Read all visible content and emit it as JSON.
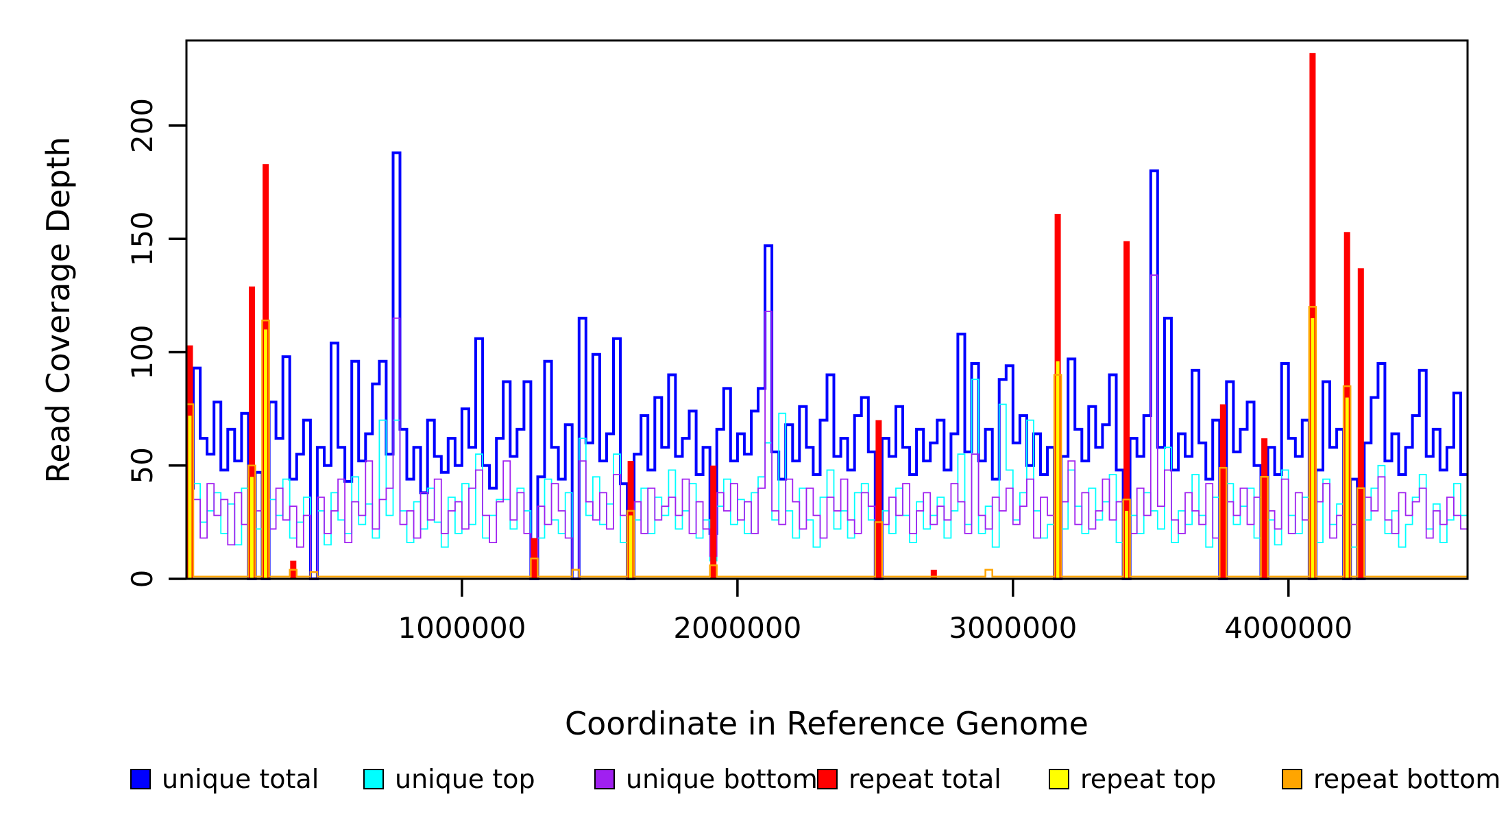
{
  "axis": {
    "xlabel": "Coordinate in Reference Genome",
    "ylabel": "Read Coverage Depth"
  },
  "legend": {
    "stray_dot": ".",
    "items": [
      {
        "label": "unique total",
        "color": "#0000FF"
      },
      {
        "label": "unique top",
        "color": "#00FFFF"
      },
      {
        "label": "unique bottom",
        "color": "#A020F0"
      },
      {
        "label": "repeat total",
        "color": "#FF0000"
      },
      {
        "label": "repeat top",
        "color": "#FFFF00"
      },
      {
        "label": "repeat bottom",
        "color": "#FFA500"
      }
    ]
  },
  "chart_data": {
    "type": "line",
    "subtype": "step-coverage",
    "title": "",
    "xlabel": "Coordinate in Reference Genome",
    "ylabel": "Read Coverage Depth",
    "grid": false,
    "legend_position": "bottom",
    "xlim": [
      0,
      4650000
    ],
    "ylim": [
      0,
      237
    ],
    "bin_size_bp": 25000,
    "n_bins": 186,
    "xticks": [
      {
        "value": 1000000,
        "label": "1000000"
      },
      {
        "value": 2000000,
        "label": "2000000"
      },
      {
        "value": 3000000,
        "label": "3000000"
      },
      {
        "value": 4000000,
        "label": "4000000"
      }
    ],
    "yticks": [
      {
        "value": 0,
        "label": "0"
      },
      {
        "value": 50,
        "label": "50"
      },
      {
        "value": 100,
        "label": "100"
      },
      {
        "value": 150,
        "label": "150"
      },
      {
        "value": 200,
        "label": "200"
      }
    ],
    "series": [
      {
        "name": "unique total",
        "color": "#0000FF",
        "line_width": 4,
        "render": "step",
        "values": [
          40,
          93,
          62,
          55,
          78,
          48,
          66,
          52,
          73,
          0,
          47,
          0,
          78,
          62,
          98,
          44,
          55,
          70,
          0,
          58,
          50,
          104,
          58,
          43,
          96,
          52,
          64,
          86,
          96,
          55,
          188,
          66,
          44,
          58,
          38,
          70,
          54,
          47,
          62,
          50,
          75,
          58,
          106,
          50,
          40,
          62,
          87,
          54,
          66,
          87,
          0,
          45,
          96,
          58,
          44,
          68,
          0,
          115,
          60,
          99,
          52,
          64,
          106,
          42,
          0,
          55,
          72,
          48,
          80,
          58,
          90,
          54,
          62,
          74,
          46,
          58,
          20,
          66,
          84,
          52,
          64,
          55,
          74,
          84,
          147,
          56,
          44,
          68,
          52,
          76,
          58,
          46,
          70,
          90,
          54,
          62,
          48,
          72,
          80,
          56,
          0,
          62,
          54,
          76,
          58,
          46,
          66,
          52,
          60,
          70,
          48,
          64,
          108,
          56,
          95,
          52,
          66,
          44,
          88,
          94,
          60,
          72,
          50,
          64,
          46,
          58,
          0,
          54,
          97,
          66,
          52,
          76,
          58,
          68,
          90,
          48,
          0,
          62,
          54,
          72,
          180,
          58,
          115,
          48,
          64,
          54,
          92,
          60,
          44,
          70,
          0,
          87,
          56,
          66,
          78,
          50,
          0,
          58,
          46,
          95,
          62,
          54,
          70,
          0,
          48,
          87,
          58,
          66,
          0,
          44,
          0,
          60,
          80,
          95,
          52,
          64,
          46,
          58,
          72,
          92,
          54,
          66,
          48,
          58,
          82,
          46
        ]
      },
      {
        "name": "unique top",
        "color": "#00FFFF",
        "line_width": 1.8,
        "render": "step",
        "values": [
          18,
          42,
          25,
          30,
          38,
          20,
          33,
          15,
          40,
          0,
          22,
          2,
          35,
          28,
          44,
          18,
          25,
          36,
          0,
          30,
          15,
          38,
          26,
          20,
          45,
          24,
          33,
          18,
          70,
          28,
          70,
          30,
          16,
          34,
          22,
          40,
          25,
          14,
          36,
          20,
          42,
          24,
          55,
          18,
          28,
          35,
          35,
          22,
          40,
          30,
          0,
          18,
          44,
          26,
          20,
          38,
          0,
          62,
          28,
          45,
          24,
          33,
          55,
          16,
          0,
          26,
          40,
          20,
          36,
          28,
          48,
          22,
          30,
          42,
          18,
          26,
          8,
          32,
          44,
          24,
          35,
          20,
          38,
          45,
          60,
          26,
          73,
          30,
          18,
          40,
          26,
          14,
          36,
          48,
          22,
          30,
          18,
          38,
          42,
          26,
          0,
          30,
          20,
          40,
          28,
          16,
          34,
          22,
          28,
          36,
          18,
          30,
          55,
          24,
          88,
          20,
          32,
          14,
          77,
          48,
          26,
          38,
          70,
          30,
          18,
          24,
          0,
          22,
          48,
          32,
          20,
          40,
          26,
          34,
          46,
          16,
          0,
          28,
          20,
          38,
          30,
          22,
          58,
          16,
          30,
          24,
          46,
          28,
          14,
          36,
          0,
          42,
          24,
          32,
          40,
          18,
          0,
          26,
          15,
          48,
          28,
          20,
          36,
          0,
          16,
          44,
          24,
          33,
          0,
          14,
          0,
          26,
          40,
          50,
          20,
          30,
          14,
          24,
          36,
          46,
          22,
          33,
          16,
          26,
          42,
          28
        ]
      },
      {
        "name": "unique bottom",
        "color": "#A020F0",
        "line_width": 1.8,
        "render": "step",
        "values": [
          25,
          35,
          18,
          42,
          28,
          35,
          15,
          38,
          24,
          0,
          30,
          2,
          22,
          40,
          26,
          32,
          14,
          28,
          0,
          36,
          20,
          30,
          44,
          16,
          34,
          28,
          52,
          22,
          35,
          40,
          115,
          24,
          30,
          18,
          38,
          26,
          44,
          20,
          30,
          34,
          22,
          40,
          48,
          28,
          16,
          34,
          52,
          26,
          38,
          20,
          0,
          32,
          24,
          42,
          30,
          18,
          0,
          52,
          34,
          26,
          38,
          22,
          46,
          28,
          0,
          34,
          20,
          40,
          26,
          32,
          36,
          28,
          44,
          20,
          34,
          22,
          10,
          38,
          30,
          42,
          26,
          34,
          20,
          40,
          118,
          30,
          24,
          44,
          34,
          22,
          40,
          28,
          18,
          36,
          30,
          44,
          26,
          20,
          38,
          32,
          0,
          24,
          36,
          28,
          42,
          20,
          30,
          38,
          24,
          32,
          26,
          42,
          34,
          20,
          55,
          28,
          22,
          36,
          30,
          40,
          24,
          32,
          44,
          18,
          36,
          28,
          0,
          34,
          52,
          24,
          38,
          22,
          30,
          44,
          26,
          34,
          0,
          20,
          40,
          28,
          134,
          32,
          48,
          26,
          20,
          38,
          30,
          24,
          42,
          18,
          0,
          34,
          28,
          40,
          24,
          36,
          0,
          30,
          22,
          44,
          20,
          38,
          26,
          0,
          34,
          42,
          18,
          28,
          0,
          24,
          0,
          36,
          30,
          45,
          26,
          20,
          38,
          28,
          34,
          40,
          18,
          30,
          24,
          36,
          28,
          22
        ]
      },
      {
        "name": "repeat total",
        "color": "#FF0000",
        "line_width": 9,
        "render": "spike",
        "values": [
          103,
          0,
          0,
          0,
          0,
          0,
          0,
          0,
          0,
          129,
          0,
          183,
          0,
          0,
          0,
          8,
          0,
          0,
          0,
          0,
          0,
          0,
          0,
          0,
          0,
          0,
          0,
          0,
          0,
          0,
          0,
          0,
          0,
          0,
          0,
          0,
          0,
          0,
          0,
          0,
          0,
          0,
          0,
          0,
          0,
          0,
          0,
          0,
          0,
          0,
          18,
          0,
          0,
          0,
          0,
          0,
          0,
          0,
          0,
          0,
          0,
          0,
          0,
          0,
          52,
          0,
          0,
          0,
          0,
          0,
          0,
          0,
          0,
          0,
          0,
          0,
          50,
          0,
          0,
          0,
          0,
          0,
          0,
          0,
          0,
          0,
          0,
          0,
          0,
          0,
          0,
          0,
          0,
          0,
          0,
          0,
          0,
          0,
          0,
          0,
          70,
          0,
          0,
          0,
          0,
          0,
          0,
          0,
          4,
          0,
          0,
          0,
          0,
          0,
          0,
          0,
          0,
          0,
          0,
          0,
          0,
          0,
          0,
          0,
          0,
          0,
          161,
          0,
          0,
          0,
          0,
          0,
          0,
          0,
          0,
          0,
          149,
          0,
          0,
          0,
          0,
          0,
          0,
          0,
          0,
          0,
          0,
          0,
          0,
          0,
          77,
          0,
          0,
          0,
          0,
          0,
          62,
          0,
          0,
          0,
          0,
          0,
          0,
          232,
          0,
          0,
          0,
          0,
          153,
          0,
          137,
          0,
          0,
          0,
          0,
          0,
          0,
          0,
          0,
          0,
          0,
          0,
          0,
          0,
          0,
          0
        ]
      },
      {
        "name": "repeat top",
        "color": "#FFFF00",
        "line_width": 5,
        "render": "spike",
        "values": [
          72,
          0,
          0,
          0,
          0,
          0,
          0,
          0,
          0,
          45,
          0,
          110,
          0,
          0,
          0,
          0,
          0,
          0,
          0,
          0,
          0,
          0,
          0,
          0,
          0,
          0,
          0,
          0,
          0,
          0,
          0,
          0,
          0,
          0,
          0,
          0,
          0,
          0,
          0,
          0,
          0,
          0,
          0,
          0,
          0,
          0,
          0,
          0,
          0,
          0,
          0,
          0,
          0,
          0,
          0,
          0,
          0,
          0,
          0,
          0,
          0,
          0,
          0,
          0,
          28,
          0,
          0,
          0,
          0,
          0,
          0,
          0,
          0,
          0,
          0,
          0,
          0,
          0,
          0,
          0,
          0,
          0,
          0,
          0,
          0,
          0,
          0,
          0,
          0,
          0,
          0,
          0,
          0,
          0,
          0,
          0,
          0,
          0,
          0,
          0,
          0,
          0,
          0,
          0,
          0,
          0,
          0,
          0,
          0,
          0,
          0,
          0,
          0,
          0,
          0,
          0,
          0,
          0,
          0,
          0,
          0,
          0,
          0,
          0,
          0,
          0,
          96,
          0,
          0,
          0,
          0,
          0,
          0,
          0,
          0,
          0,
          30,
          0,
          0,
          0,
          0,
          0,
          0,
          0,
          0,
          0,
          0,
          0,
          0,
          0,
          0,
          0,
          0,
          0,
          0,
          0,
          0,
          0,
          0,
          0,
          0,
          0,
          0,
          115,
          0,
          0,
          0,
          0,
          80,
          0,
          0,
          0,
          0,
          0,
          0,
          0,
          0,
          0,
          0,
          0,
          0,
          0,
          0,
          0,
          0,
          0
        ]
      },
      {
        "name": "repeat bottom",
        "color": "#FFA500",
        "line_width": 2.5,
        "render": "step",
        "values": [
          77,
          1,
          1,
          1,
          1,
          1,
          1,
          1,
          1,
          50,
          1,
          114,
          1,
          1,
          1,
          4,
          1,
          1,
          3,
          1,
          1,
          1,
          1,
          1,
          1,
          1,
          1,
          1,
          1,
          1,
          1,
          1,
          1,
          1,
          1,
          1,
          1,
          1,
          1,
          1,
          1,
          1,
          1,
          1,
          1,
          1,
          1,
          1,
          1,
          1,
          9,
          1,
          1,
          1,
          1,
          1,
          4,
          1,
          1,
          1,
          1,
          1,
          1,
          1,
          30,
          1,
          1,
          1,
          1,
          1,
          1,
          1,
          1,
          1,
          1,
          1,
          6,
          1,
          1,
          1,
          1,
          1,
          1,
          1,
          1,
          1,
          1,
          1,
          1,
          1,
          1,
          1,
          1,
          1,
          1,
          1,
          1,
          1,
          1,
          1,
          25,
          1,
          1,
          1,
          1,
          1,
          1,
          1,
          1,
          1,
          1,
          1,
          1,
          1,
          1,
          1,
          4,
          1,
          1,
          1,
          1,
          1,
          1,
          1,
          1,
          1,
          90,
          1,
          1,
          1,
          1,
          1,
          1,
          1,
          1,
          1,
          35,
          1,
          1,
          1,
          1,
          1,
          1,
          1,
          1,
          1,
          1,
          1,
          1,
          1,
          49,
          1,
          1,
          1,
          1,
          1,
          45,
          1,
          1,
          1,
          1,
          1,
          1,
          120,
          1,
          1,
          1,
          1,
          85,
          1,
          40,
          1,
          1,
          1,
          1,
          1,
          1,
          1,
          1,
          1,
          1,
          1,
          1,
          1,
          1,
          1
        ]
      }
    ]
  }
}
